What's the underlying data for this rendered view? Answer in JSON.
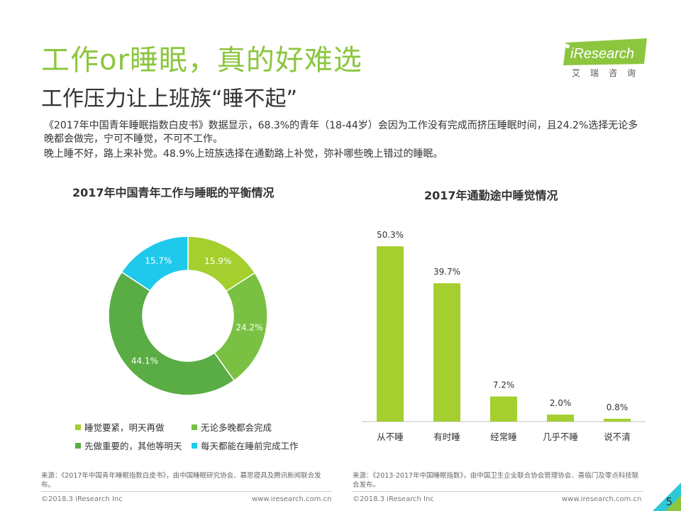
{
  "header": {
    "title": "工作or睡眠，真的好难选",
    "subtitle": "工作压力让上班族“睡不起”"
  },
  "brand": {
    "logo_text": "iResearch",
    "logo_cn": "艾瑞咨询",
    "accent_color": "#8cc63f",
    "corner_color": "#2fc9d6"
  },
  "intro": {
    "para1": "《2017年中国青年睡眠指数白皮书》数据显示，68.3%的青年（18-44岁）会因为工作没有完成而挤压睡眠时间，且24.2%选择无论多晚都会做完，宁可不睡觉，不可不工作。",
    "para2": "晚上睡不好，路上来补觉。48.9%上班族选择在通勤路上补觉，弥补哪些晚上错过的睡眠。"
  },
  "chart_data": [
    {
      "type": "pie",
      "title": "2017年中国青年工作与睡眠的平衡情况",
      "donut": true,
      "slices": [
        {
          "label": "睡觉要紧，明天再做",
          "value": 15.9,
          "display": "15.9%",
          "color": "#a4cf2e"
        },
        {
          "label": "无论多晚都会完成",
          "value": 24.2,
          "display": "24.2%",
          "color": "#7ac143"
        },
        {
          "label": "先做重要的，其他等明天",
          "value": 44.1,
          "display": "44.1%",
          "color": "#5aac44"
        },
        {
          "label": "每天都能在睡前完成工作",
          "value": 15.7,
          "display": "15.7%",
          "color": "#1ec9ec"
        }
      ],
      "legend_position": "bottom"
    },
    {
      "type": "bar",
      "title": "2017年通勤途中睡觉情况",
      "categories": [
        "从不睡",
        "有时睡",
        "经常睡",
        "几乎不睡",
        "说不清"
      ],
      "values": [
        50.3,
        39.7,
        7.2,
        2.0,
        0.8
      ],
      "labels": [
        "50.3%",
        "39.7%",
        "7.2%",
        "2.0%",
        "0.8%"
      ],
      "color": "#a4cf2e",
      "ylim": [
        0,
        55
      ]
    }
  ],
  "sources": {
    "left": "来源：《2017年中国青年睡眠指数白皮书》，由中国睡眠研究协会、慕思寝具及腾讯新闻联合发布。",
    "right": "来源：《2013-2017年中国睡眠指数》，由中国卫生企业联合协会管理协会、喜临门及零点科技联合发布。"
  },
  "footer": {
    "copyright_left": "©2018.3 iResearch Inc",
    "url_left": "www.iresearch.com.cn",
    "copyright_right": "©2018.3 iResearch Inc",
    "url_right": "www.iresearch.com.cn",
    "page_number": "5"
  }
}
